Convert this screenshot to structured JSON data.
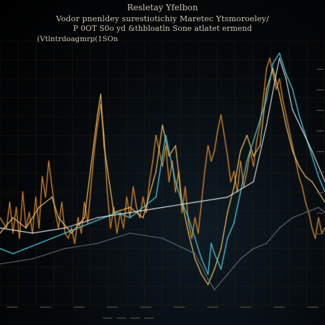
{
  "title": {
    "line1": "Resletay Yfelbon",
    "line2": "Vodor pnenldey surestiotichiy Maretec Ytsmoroeley/",
    "line3": "P 0OT S0o yd &thbloatln Sone atlatet ermend",
    "line4": "(Vtlntrdoagmrp(1SOn"
  },
  "colors": {
    "background": "#000000",
    "grid": "#3a2a12",
    "series_orange": "#d98a2b",
    "series_gold": "#f0c060",
    "series_teal": "#4fc3d6",
    "series_white": "#dde7ea",
    "series_faint": "#6a7580"
  },
  "chart_data": {
    "type": "line",
    "x_range": [
      0,
      100
    ],
    "y_range": [
      0,
      100
    ],
    "grid": true,
    "legend": "none",
    "series": [
      {
        "color_key": "series_orange",
        "values": [
          [
            0,
            34
          ],
          [
            2,
            30
          ],
          [
            3,
            40
          ],
          [
            4,
            28
          ],
          [
            5,
            38
          ],
          [
            6,
            26
          ],
          [
            7,
            44
          ],
          [
            8,
            30
          ],
          [
            9,
            36
          ],
          [
            10,
            28
          ],
          [
            11,
            42
          ],
          [
            12,
            30
          ],
          [
            13,
            50
          ],
          [
            14,
            42
          ],
          [
            15,
            56
          ],
          [
            16,
            46
          ],
          [
            17,
            36
          ],
          [
            18,
            30
          ],
          [
            19,
            40
          ],
          [
            20,
            28
          ],
          [
            21,
            26
          ],
          [
            22,
            30
          ],
          [
            23,
            24
          ],
          [
            24,
            34
          ],
          [
            25,
            28
          ],
          [
            26,
            40
          ],
          [
            27,
            32
          ],
          [
            28,
            46
          ],
          [
            29,
            60
          ],
          [
            30,
            70
          ],
          [
            31,
            78
          ],
          [
            32,
            66
          ],
          [
            33,
            44
          ],
          [
            34,
            30
          ],
          [
            35,
            38
          ],
          [
            36,
            28
          ],
          [
            37,
            36
          ],
          [
            38,
            30
          ],
          [
            39,
            42
          ],
          [
            40,
            34
          ],
          [
            41,
            46
          ],
          [
            42,
            38
          ],
          [
            43,
            34
          ],
          [
            44,
            42
          ],
          [
            45,
            36
          ],
          [
            46,
            48
          ],
          [
            47,
            56
          ],
          [
            48,
            66
          ],
          [
            49,
            60
          ],
          [
            50,
            54
          ],
          [
            51,
            62
          ],
          [
            52,
            48
          ],
          [
            53,
            56
          ],
          [
            54,
            44
          ],
          [
            55,
            52
          ],
          [
            56,
            36
          ],
          [
            57,
            46
          ],
          [
            58,
            32
          ],
          [
            59,
            26
          ],
          [
            60,
            34
          ],
          [
            61,
            28
          ],
          [
            62,
            40
          ],
          [
            63,
            52
          ],
          [
            64,
            62
          ],
          [
            65,
            56
          ],
          [
            66,
            60
          ],
          [
            67,
            68
          ],
          [
            68,
            74
          ],
          [
            69,
            66
          ],
          [
            70,
            58
          ],
          [
            71,
            48
          ],
          [
            72,
            52
          ],
          [
            73,
            44
          ],
          [
            74,
            56
          ],
          [
            75,
            46
          ],
          [
            76,
            52
          ],
          [
            77,
            60
          ],
          [
            78,
            54
          ],
          [
            79,
            64
          ],
          [
            80,
            70
          ],
          [
            81,
            80
          ],
          [
            82,
            92
          ],
          [
            83,
            96
          ],
          [
            84,
            90
          ],
          [
            85,
            84
          ],
          [
            86,
            88
          ],
          [
            87,
            80
          ],
          [
            88,
            74
          ],
          [
            89,
            68
          ],
          [
            90,
            62
          ],
          [
            91,
            56
          ],
          [
            92,
            50
          ],
          [
            93,
            46
          ],
          [
            94,
            40
          ],
          [
            95,
            36
          ],
          [
            96,
            30
          ],
          [
            97,
            26
          ],
          [
            98,
            34
          ],
          [
            99,
            28
          ],
          [
            100,
            30
          ]
        ]
      },
      {
        "color_key": "series_gold",
        "values": [
          [
            0,
            28
          ],
          [
            4,
            34
          ],
          [
            8,
            30
          ],
          [
            12,
            38
          ],
          [
            16,
            42
          ],
          [
            18,
            34
          ],
          [
            22,
            28
          ],
          [
            26,
            34
          ],
          [
            28,
            54
          ],
          [
            30,
            74
          ],
          [
            31,
            82
          ],
          [
            32,
            62
          ],
          [
            35,
            36
          ],
          [
            40,
            38
          ],
          [
            44,
            34
          ],
          [
            48,
            52
          ],
          [
            50,
            70
          ],
          [
            52,
            58
          ],
          [
            54,
            62
          ],
          [
            56,
            40
          ],
          [
            58,
            28
          ],
          [
            60,
            18
          ],
          [
            62,
            12
          ],
          [
            64,
            8
          ],
          [
            66,
            14
          ],
          [
            68,
            22
          ],
          [
            70,
            36
          ],
          [
            72,
            46
          ],
          [
            74,
            60
          ],
          [
            76,
            66
          ],
          [
            78,
            58
          ],
          [
            80,
            62
          ],
          [
            82,
            84
          ],
          [
            84,
            92
          ],
          [
            86,
            82
          ],
          [
            88,
            70
          ],
          [
            90,
            60
          ],
          [
            92,
            54
          ],
          [
            94,
            50
          ],
          [
            96,
            48
          ],
          [
            98,
            44
          ],
          [
            100,
            40
          ]
        ]
      },
      {
        "color_key": "series_teal",
        "values": [
          [
            0,
            22
          ],
          [
            4,
            20
          ],
          [
            8,
            22
          ],
          [
            12,
            24
          ],
          [
            16,
            26
          ],
          [
            20,
            28
          ],
          [
            24,
            30
          ],
          [
            28,
            32
          ],
          [
            32,
            34
          ],
          [
            36,
            36
          ],
          [
            40,
            34
          ],
          [
            44,
            38
          ],
          [
            48,
            42
          ],
          [
            50,
            58
          ],
          [
            51,
            66
          ],
          [
            52,
            60
          ],
          [
            54,
            48
          ],
          [
            56,
            40
          ],
          [
            58,
            34
          ],
          [
            60,
            26
          ],
          [
            62,
            18
          ],
          [
            64,
            12
          ],
          [
            65,
            24
          ],
          [
            66,
            20
          ],
          [
            68,
            14
          ],
          [
            70,
            26
          ],
          [
            72,
            32
          ],
          [
            74,
            44
          ],
          [
            76,
            56
          ],
          [
            78,
            64
          ],
          [
            80,
            72
          ],
          [
            82,
            80
          ],
          [
            84,
            94
          ],
          [
            86,
            98
          ],
          [
            88,
            90
          ],
          [
            90,
            84
          ],
          [
            92,
            74
          ],
          [
            94,
            66
          ],
          [
            96,
            58
          ],
          [
            98,
            50
          ],
          [
            100,
            44
          ]
        ]
      },
      {
        "color_key": "series_white",
        "values": [
          [
            0,
            30
          ],
          [
            10,
            28
          ],
          [
            20,
            30
          ],
          [
            30,
            34
          ],
          [
            40,
            36
          ],
          [
            50,
            38
          ],
          [
            60,
            40
          ],
          [
            70,
            42
          ],
          [
            78,
            48
          ],
          [
            82,
            70
          ],
          [
            85,
            90
          ],
          [
            86,
            96
          ],
          [
            88,
            88
          ],
          [
            90,
            76
          ],
          [
            93,
            68
          ],
          [
            96,
            60
          ],
          [
            100,
            48
          ]
        ]
      },
      {
        "color_key": "series_faint",
        "values": [
          [
            0,
            16
          ],
          [
            10,
            18
          ],
          [
            20,
            22
          ],
          [
            30,
            24
          ],
          [
            40,
            28
          ],
          [
            50,
            26
          ],
          [
            60,
            20
          ],
          [
            64,
            10
          ],
          [
            66,
            6
          ],
          [
            70,
            12
          ],
          [
            74,
            18
          ],
          [
            78,
            22
          ],
          [
            82,
            24
          ],
          [
            86,
            30
          ],
          [
            90,
            34
          ],
          [
            94,
            36
          ],
          [
            98,
            38
          ],
          [
            100,
            36
          ]
        ]
      }
    ],
    "y_ticks": [
      "",
      "",
      "",
      "",
      "",
      "",
      "",
      "",
      ""
    ],
    "x_ticks": [
      "",
      "",
      "",
      "",
      "",
      "",
      "",
      "",
      "",
      ""
    ],
    "footer": ""
  }
}
